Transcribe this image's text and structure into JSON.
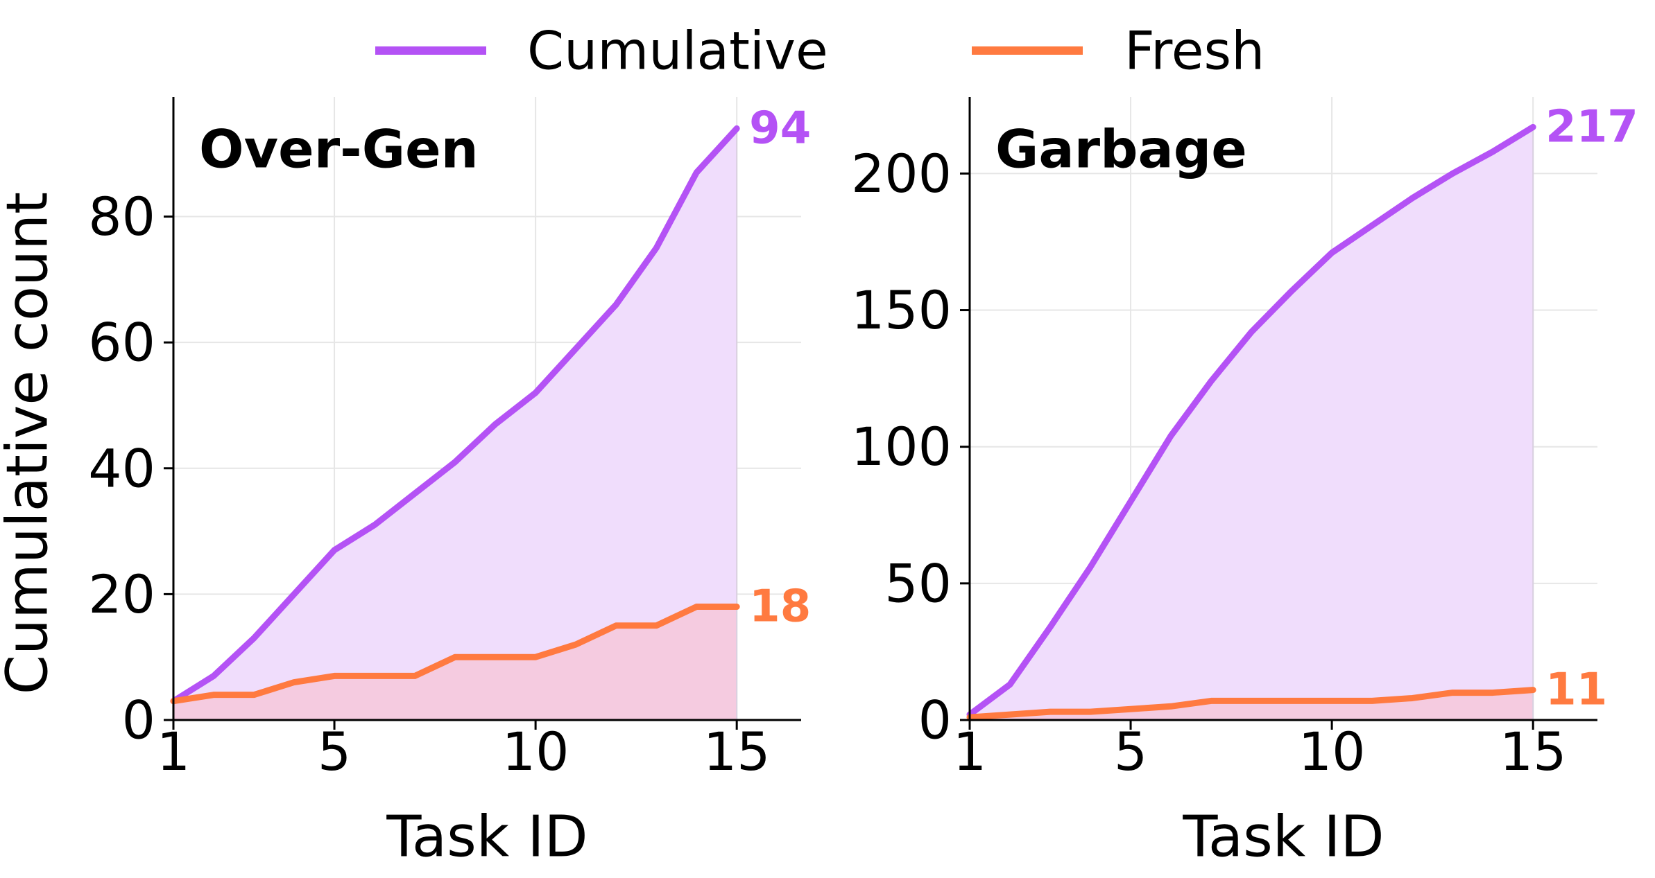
{
  "legend": [
    {
      "label": "Cumulative",
      "color": "#b452f5"
    },
    {
      "label": "Fresh",
      "color": "#ff7a40"
    }
  ],
  "chart_data": [
    {
      "type": "area",
      "title": "Over-Gen",
      "xlabel": "Task ID",
      "ylabel": "Cumulative count",
      "x": [
        1,
        2,
        3,
        4,
        5,
        6,
        7,
        8,
        9,
        10,
        11,
        12,
        13,
        14,
        15
      ],
      "xticks": [
        1,
        5,
        10,
        15
      ],
      "yticks": [
        0,
        20,
        40,
        60,
        80
      ],
      "xlim": [
        1,
        16.6
      ],
      "ylim": [
        0,
        99
      ],
      "grid": true,
      "series": [
        {
          "name": "Cumulative",
          "color": "#b452f5",
          "fill": "#f0ddfc",
          "values": [
            3,
            7,
            13,
            20,
            27,
            31,
            36,
            41,
            47,
            52,
            59,
            66,
            75,
            87,
            94
          ],
          "end_label": "94"
        },
        {
          "name": "Fresh",
          "color": "#ff7a40",
          "fill": "#f5cbe0",
          "values": [
            3,
            4,
            4,
            6,
            7,
            7,
            7,
            10,
            10,
            10,
            12,
            15,
            15,
            18,
            18
          ],
          "end_label": "18"
        }
      ]
    },
    {
      "type": "area",
      "title": "Garbage",
      "xlabel": "Task ID",
      "ylabel": "",
      "x": [
        1,
        2,
        3,
        4,
        5,
        6,
        7,
        8,
        9,
        10,
        11,
        12,
        13,
        14,
        15
      ],
      "xticks": [
        1,
        5,
        10,
        15
      ],
      "yticks": [
        0,
        50,
        100,
        150,
        200
      ],
      "xlim": [
        1,
        16.6
      ],
      "ylim": [
        0,
        228
      ],
      "grid": true,
      "series": [
        {
          "name": "Cumulative",
          "color": "#b452f5",
          "fill": "#f0ddfc",
          "values": [
            2,
            13,
            34,
            56,
            80,
            104,
            124,
            142,
            157,
            171,
            181,
            191,
            200,
            208,
            217
          ],
          "end_label": "217"
        },
        {
          "name": "Fresh",
          "color": "#ff7a40",
          "fill": "#f5cbe0",
          "values": [
            1,
            2,
            3,
            3,
            4,
            5,
            7,
            7,
            7,
            7,
            7,
            8,
            10,
            10,
            11
          ],
          "end_label": "11"
        }
      ]
    }
  ]
}
